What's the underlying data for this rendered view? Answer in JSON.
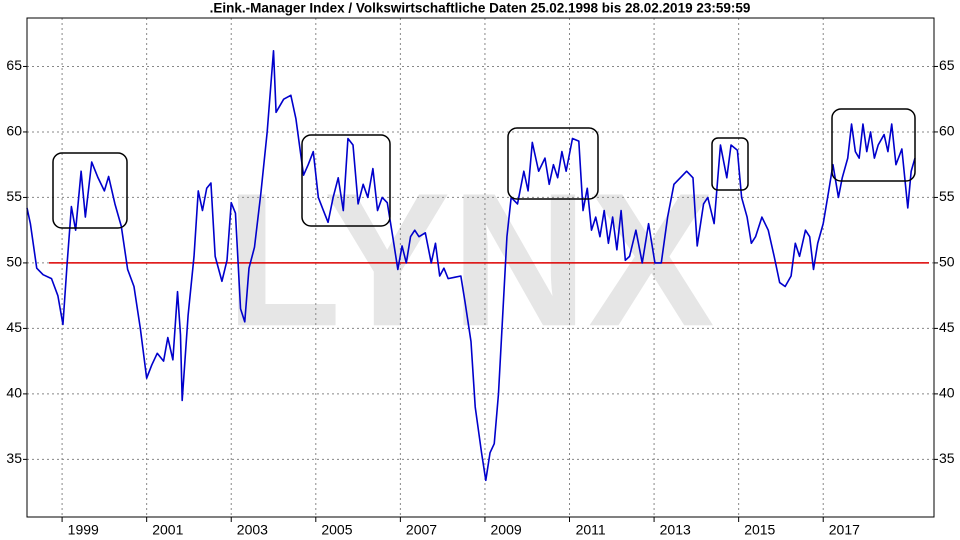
{
  "chart_data": {
    "type": "line",
    "title": ".Eink.-Manager Index / Volkswirtschaftliche Daten 25.02.1998 bis 28.02.2019 23:59:59",
    "watermark": "LYNX",
    "x": [
      1998.17,
      1998.25,
      1998.4,
      1998.55,
      1998.75,
      1998.9,
      1999.02,
      1999.12,
      1999.22,
      1999.32,
      1999.45,
      1999.55,
      1999.7,
      1999.85,
      2000.0,
      2000.1,
      2000.25,
      2000.4,
      2000.55,
      2000.7,
      2000.85,
      2001.0,
      2001.12,
      2001.25,
      2001.4,
      2001.5,
      2001.62,
      2001.73,
      2001.8,
      2001.84,
      2001.98,
      2002.12,
      2002.22,
      2002.32,
      2002.42,
      2002.52,
      2002.62,
      2002.78,
      2002.9,
      2003.0,
      2003.1,
      2003.22,
      2003.32,
      2003.42,
      2003.55,
      2003.7,
      2003.85,
      2004.0,
      2004.06,
      2004.24,
      2004.41,
      2004.53,
      2004.71,
      2004.82,
      2004.94,
      2005.06,
      2005.18,
      2005.29,
      2005.41,
      2005.53,
      2005.65,
      2005.76,
      2005.88,
      2006.0,
      2006.12,
      2006.23,
      2006.35,
      2006.46,
      2006.57,
      2006.69,
      2006.82,
      2006.94,
      2007.04,
      2007.14,
      2007.24,
      2007.34,
      2007.44,
      2007.59,
      2007.73,
      2007.83,
      2007.93,
      2008.03,
      2008.13,
      2008.28,
      2008.43,
      2008.53,
      2008.67,
      2008.77,
      2008.92,
      2009.02,
      2009.12,
      2009.22,
      2009.32,
      2009.42,
      2009.52,
      2009.62,
      2009.77,
      2009.92,
      2010.02,
      2010.12,
      2010.27,
      2010.42,
      2010.52,
      2010.62,
      2010.72,
      2010.82,
      2010.92,
      2011.07,
      2011.22,
      2011.32,
      2011.42,
      2011.52,
      2011.62,
      2011.72,
      2011.82,
      2011.92,
      2012.02,
      2012.12,
      2012.22,
      2012.32,
      2012.42,
      2012.57,
      2012.72,
      2012.87,
      2013.02,
      2013.17,
      2013.32,
      2013.47,
      2013.62,
      2013.77,
      2013.92,
      2014.02,
      2014.17,
      2014.27,
      2014.42,
      2014.57,
      2014.72,
      2014.82,
      2014.97,
      2015.07,
      2015.2,
      2015.3,
      2015.4,
      2015.55,
      2015.7,
      2015.84,
      2015.97,
      2016.1,
      2016.24,
      2016.34,
      2016.44,
      2016.58,
      2016.68,
      2016.77,
      2016.87,
      2017.0,
      2017.13,
      2017.23,
      2017.36,
      2017.45,
      2017.58,
      2017.67,
      2017.76,
      2017.85,
      2017.94,
      2018.03,
      2018.12,
      2018.21,
      2018.3,
      2018.44,
      2018.53,
      2018.62,
      2018.72,
      2018.86,
      2019.0,
      2019.08,
      2019.17
    ],
    "series": [
      {
        "color": "#0000cc",
        "values": [
          54.2,
          53,
          49.6,
          49.1,
          48.8,
          47.5,
          45.3,
          50,
          54.3,
          52.5,
          57,
          53.5,
          57.7,
          56.5,
          55.5,
          56.6,
          54.5,
          52.8,
          49.5,
          48.2,
          45,
          41.2,
          42.2,
          43.1,
          42.5,
          44.3,
          42.6,
          47.8,
          44.5,
          39.5,
          46,
          50.5,
          55.5,
          54,
          55.7,
          56.1,
          50.5,
          48.6,
          50.2,
          54.6,
          53.8,
          46.5,
          45.5,
          49.6,
          51.2,
          55.3,
          60,
          66.2,
          61.5,
          62.5,
          62.8,
          61,
          56.7,
          57.5,
          58.5,
          55,
          54,
          53.1,
          55,
          56.5,
          54,
          59.5,
          59,
          54.5,
          56,
          55,
          57.2,
          54,
          55,
          54.6,
          52,
          49.5,
          51.3,
          50,
          52,
          52.5,
          52,
          52.3,
          50,
          51.5,
          49,
          49.6,
          48.8,
          48.9,
          49,
          47,
          44,
          39,
          35.5,
          33.4,
          35.5,
          36.2,
          40,
          46,
          52,
          55,
          54.5,
          57,
          55.5,
          59.2,
          57,
          58,
          56,
          57.5,
          56.5,
          58.5,
          57,
          59.5,
          59.3,
          54,
          55.7,
          52.5,
          53.5,
          52,
          54,
          51.5,
          53.5,
          51,
          54,
          50.2,
          50.5,
          52.5,
          50,
          53,
          50,
          50,
          53.5,
          56,
          56.5,
          57,
          56.5,
          51.3,
          54.5,
          55,
          53,
          59,
          56.5,
          59,
          58.6,
          55,
          53.5,
          51.5,
          52,
          53.5,
          52.5,
          50.5,
          48.5,
          48.2,
          49,
          51.5,
          50.5,
          52.5,
          52,
          49.5,
          51.5,
          53,
          55.5,
          57.5,
          55,
          56.5,
          58,
          60.6,
          58.5,
          58,
          60.6,
          58.5,
          60,
          58,
          59,
          59.8,
          58.5,
          60.6,
          57.5,
          58.7,
          54.2,
          57,
          58
        ]
      }
    ],
    "hline": {
      "value": 50,
      "color": "#dd0000"
    },
    "xlim": [
      1998.17,
      2019.62
    ],
    "xticks": [
      1999,
      2001,
      2003,
      2005,
      2007,
      2009,
      2011,
      2013,
      2015,
      2017
    ],
    "ylim": [
      30.6,
      68.7
    ],
    "yticks": [
      35,
      40,
      45,
      50,
      55,
      60,
      65
    ],
    "grid": true
  }
}
